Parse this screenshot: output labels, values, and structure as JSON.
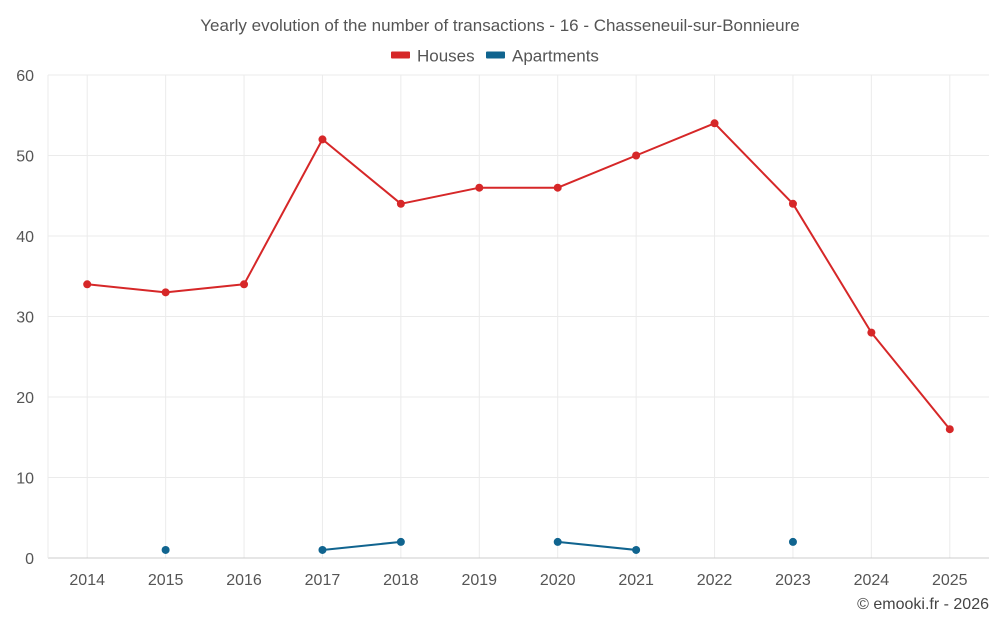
{
  "chart_data": {
    "type": "line",
    "title": "Yearly evolution of the number of transactions - 16 - Chasseneuil-sur-Bonnieure",
    "xlabel": "",
    "ylabel": "",
    "categories": [
      "2014",
      "2015",
      "2016",
      "2017",
      "2018",
      "2019",
      "2020",
      "2021",
      "2022",
      "2023",
      "2024",
      "2025"
    ],
    "ylim": [
      0,
      60
    ],
    "yticks": [
      0,
      10,
      20,
      30,
      40,
      50,
      60
    ],
    "grid": true,
    "legend_position": "top-center",
    "series": [
      {
        "name": "Houses",
        "color": "#d62728",
        "values": [
          34,
          33,
          34,
          52,
          44,
          46,
          46,
          50,
          54,
          44,
          28,
          16
        ]
      },
      {
        "name": "Apartments",
        "color": "#10648f",
        "values": [
          null,
          1,
          null,
          1,
          2,
          null,
          2,
          1,
          null,
          2,
          null,
          null
        ]
      }
    ]
  },
  "credit": "© emooki.fr - 2026"
}
